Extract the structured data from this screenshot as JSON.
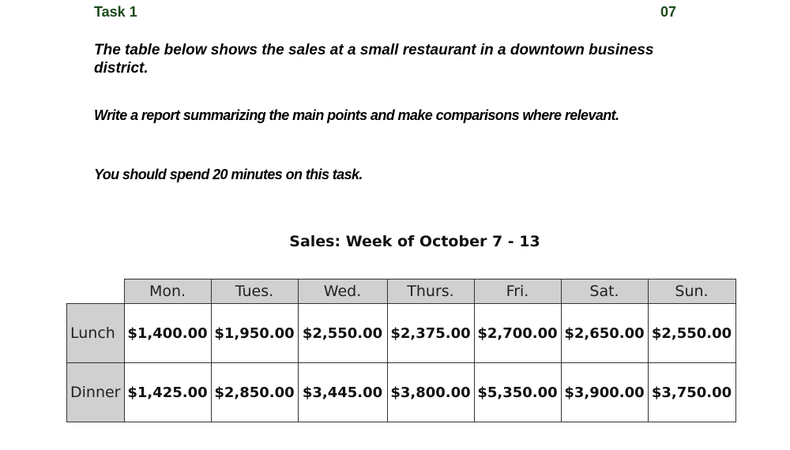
{
  "header": {
    "task_label": "Task 1",
    "task_number": "07"
  },
  "prompt": {
    "description": "The table below shows the sales at a small restaurant in a downtown business district.",
    "instruction": "Write a report summarizing the main points and make comparisons where relevant.",
    "time_note": "You should spend 20 minutes on this task."
  },
  "table": {
    "title": "Sales: Week of October 7 - 13",
    "columns": [
      "Mon.",
      "Tues.",
      "Wed.",
      "Thurs.",
      "Fri.",
      "Sat.",
      "Sun."
    ],
    "rows": [
      {
        "label": "Lunch",
        "values": [
          "$1,400.00",
          "$1,950.00",
          "$2,550.00",
          "$2,375.00",
          "$2,700.00",
          "$2,650.00",
          "$2,550.00"
        ]
      },
      {
        "label": "Dinner",
        "values": [
          "$1,425.00",
          "$2,850.00",
          "$3,445.00",
          "$3,800.00",
          "$5,350.00",
          "$3,900.00",
          "$3,750.00"
        ]
      }
    ]
  },
  "chart_data": {
    "type": "table",
    "title": "Sales: Week of October 7 - 13",
    "categories": [
      "Mon.",
      "Tues.",
      "Wed.",
      "Thurs.",
      "Fri.",
      "Sat.",
      "Sun."
    ],
    "series": [
      {
        "name": "Lunch",
        "values": [
          1400,
          1950,
          2550,
          2375,
          2700,
          2650,
          2550
        ]
      },
      {
        "name": "Dinner",
        "values": [
          1425,
          2850,
          3445,
          3800,
          5350,
          3900,
          3750
        ]
      }
    ]
  }
}
